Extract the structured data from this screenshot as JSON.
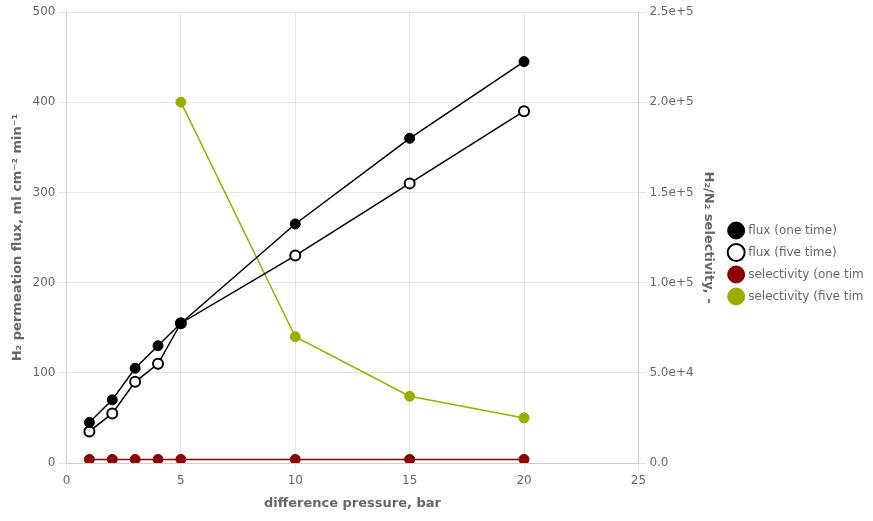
{
  "chart_data": {
    "type": "line",
    "xlabel": "difference pressure, bar",
    "ylabel": "H₂ permeation flux, ml cm⁻² min⁻¹",
    "y2label": "H₂/N₂ selectivity, -",
    "series": [
      {
        "name": "flux (one time)",
        "color": "#000000",
        "marker": "circle",
        "x": [
          1,
          2,
          3,
          4,
          5,
          10,
          15,
          20
        ],
        "values": [
          45,
          70,
          105,
          130,
          155,
          265,
          360,
          445
        ]
      },
      {
        "name": "flux (five time)",
        "color": "#000000",
        "marker": "open_circle",
        "x": [
          1,
          2,
          3,
          4,
          5,
          10,
          15,
          20
        ],
        "values": [
          35,
          55,
          90,
          110,
          155,
          230,
          310,
          390
        ]
      },
      {
        "name": "selectivity (one time)",
        "color": "#8B0000",
        "marker": "circle",
        "axis": "y2",
        "x": [
          1,
          2,
          3,
          4,
          5,
          10,
          15,
          20
        ],
        "values": [
          2000,
          2000,
          2000,
          2000,
          2000,
          2000,
          2000,
          2000
        ]
      },
      {
        "name": "selectivity (five time)",
        "color": "#9aad00",
        "marker": "circle",
        "axis": "y2",
        "x": [
          5,
          10,
          15,
          20
        ],
        "values": [
          200000,
          70000,
          37000,
          25000
        ]
      }
    ],
    "xlim": [
      0,
      25
    ],
    "xticks": [
      0,
      5,
      10,
      15,
      20,
      25
    ],
    "ylim": [
      0,
      500
    ],
    "yticks": [
      0,
      100,
      200,
      300,
      400,
      500
    ],
    "y2lim": [
      0,
      250000
    ],
    "y2ticks": [
      {
        "value": 0,
        "label": "0.0"
      },
      {
        "value": 50000,
        "label": "5.0e+4"
      },
      {
        "value": 100000,
        "label": "1.0e+5"
      },
      {
        "value": 150000,
        "label": "1.5e+5"
      },
      {
        "value": 200000,
        "label": "2.0e+5"
      },
      {
        "value": 250000,
        "label": "2.5e+5"
      }
    ],
    "grid": true,
    "legend": "right"
  }
}
